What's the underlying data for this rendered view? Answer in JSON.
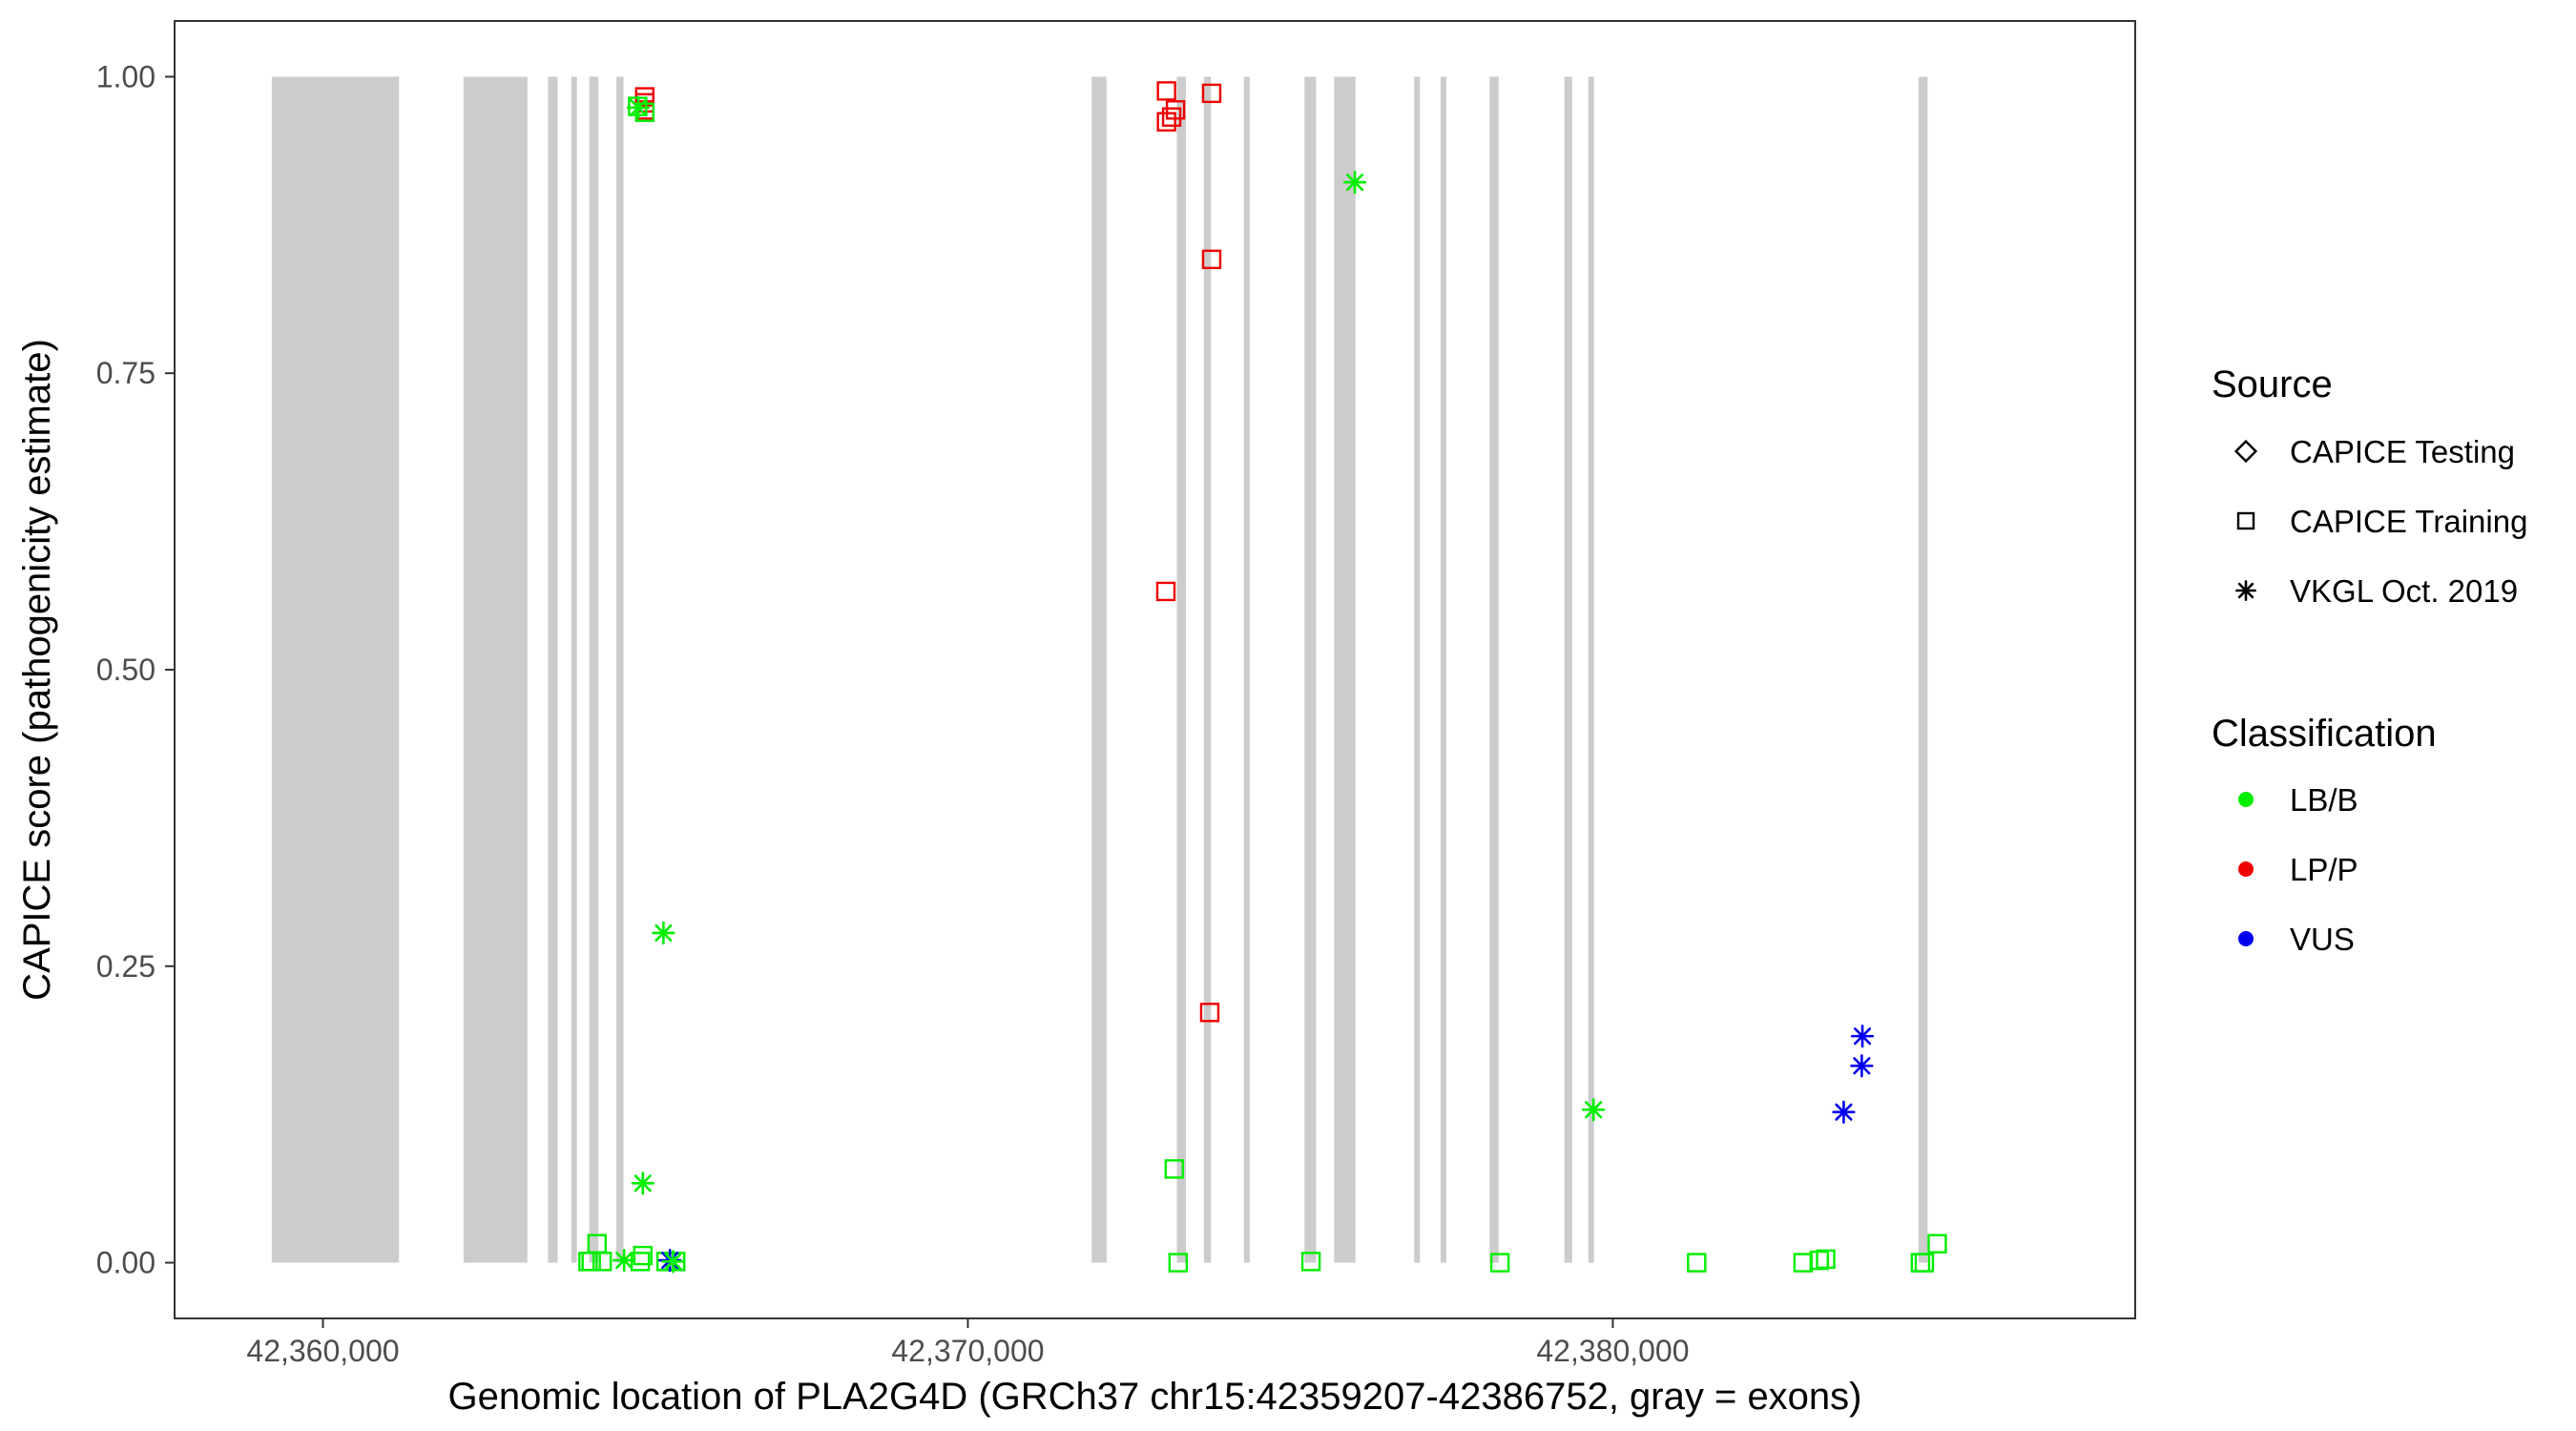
{
  "chart_data": {
    "type": "scatter",
    "title": "",
    "xlabel": "Genomic location of PLA2G4D (GRCh37 chr15:42359207-42386752, gray = exons)",
    "ylabel": "CAPICE score (pathogenicity estimate)",
    "xlim": [
      42357700,
      42388100
    ],
    "ylim": [
      -0.047,
      1.047
    ],
    "grid": false,
    "x_ticks": [
      {
        "value": 42360000,
        "label": "42,360,000"
      },
      {
        "value": 42370000,
        "label": "42,370,000"
      },
      {
        "value": 42380000,
        "label": "42,380,000"
      }
    ],
    "y_ticks": [
      {
        "value": 0,
        "label": "0.00"
      },
      {
        "value": 0.25,
        "label": "0.25"
      },
      {
        "value": 0.5,
        "label": "0.50"
      },
      {
        "value": 0.75,
        "label": "0.75"
      },
      {
        "value": 1,
        "label": "1.00"
      }
    ],
    "exon_color": "#cccccc",
    "exons": [
      [
        42359207,
        42361180
      ],
      [
        42362180,
        42363170
      ],
      [
        42363490,
        42363640
      ],
      [
        42363850,
        42363920
      ],
      [
        42364130,
        42364270
      ],
      [
        42364550,
        42364660
      ],
      [
        42371920,
        42372150
      ],
      [
        42373240,
        42373380
      ],
      [
        42373660,
        42373770
      ],
      [
        42374280,
        42374370
      ],
      [
        42375220,
        42375400
      ],
      [
        42375680,
        42376010
      ],
      [
        42376920,
        42376990
      ],
      [
        42377330,
        42377400
      ],
      [
        42378090,
        42378230
      ],
      [
        42379250,
        42379370
      ],
      [
        42379620,
        42379700
      ],
      [
        42384740,
        42384880
      ]
    ],
    "legend": {
      "placement": "right",
      "source": {
        "title": "Source",
        "items": [
          {
            "label": "CAPICE Testing",
            "shape": "diamond"
          },
          {
            "label": "CAPICE Training",
            "shape": "square"
          },
          {
            "label": "VKGL Oct. 2019",
            "shape": "asterisk"
          }
        ]
      },
      "classification": {
        "title": "Classification",
        "items": [
          {
            "label": "LB/B",
            "color": "#00ee00"
          },
          {
            "label": "LP/P",
            "color": "#ee0000"
          },
          {
            "label": "VUS",
            "color": "#0000ee"
          }
        ]
      }
    },
    "series": [
      {
        "source": "CAPICE Training",
        "classification": "LP/P",
        "shape": "square",
        "color": "#ee0000",
        "points": [
          [
            42364990,
            0.983
          ],
          [
            42364990,
            0.978
          ],
          [
            42364990,
            0.972
          ],
          [
            42373080,
            0.988
          ],
          [
            42373080,
            0.962
          ],
          [
            42373160,
            0.966
          ],
          [
            42373220,
            0.972
          ],
          [
            42373780,
            0.986
          ],
          [
            42373780,
            0.846
          ],
          [
            42373070,
            0.566
          ],
          [
            42373750,
            0.211
          ]
        ]
      },
      {
        "source": "CAPICE Training",
        "classification": "LB/B",
        "shape": "square",
        "color": "#00ee00",
        "points": [
          [
            42364880,
            0.975
          ],
          [
            42364990,
            0.97
          ],
          [
            42364110,
            0.001
          ],
          [
            42364160,
            0.001
          ],
          [
            42364250,
            0.016
          ],
          [
            42364330,
            0.001
          ],
          [
            42364920,
            0.001
          ],
          [
            42364960,
            0.006
          ],
          [
            42365320,
            0.001
          ],
          [
            42365470,
            0.001
          ],
          [
            42373200,
            0.079
          ],
          [
            42373260,
            0.0
          ],
          [
            42375320,
            0.001
          ],
          [
            42378250,
            0.0
          ],
          [
            42381300,
            0.0
          ],
          [
            42382950,
            0.0
          ],
          [
            42383200,
            0.002
          ],
          [
            42383300,
            0.003
          ],
          [
            42384770,
            0.0
          ],
          [
            42384830,
            0.0
          ],
          [
            42385030,
            0.016
          ]
        ]
      },
      {
        "source": "VKGL Oct. 2019",
        "classification": "LB/B",
        "shape": "asterisk",
        "color": "#00ee00",
        "points": [
          [
            42364890,
            0.974
          ],
          [
            42376000,
            0.911
          ],
          [
            42365280,
            0.278
          ],
          [
            42364960,
            0.067
          ],
          [
            42379700,
            0.129
          ],
          [
            42364670,
            0.002
          ]
        ]
      },
      {
        "source": "VKGL Oct. 2019",
        "classification": "VUS",
        "shape": "asterisk",
        "color": "#0000ee",
        "points": [
          [
            42383870,
            0.191
          ],
          [
            42383860,
            0.166
          ],
          [
            42383580,
            0.127
          ],
          [
            42365380,
            0.002
          ]
        ]
      },
      {
        "source": "VKGL Oct. 2019",
        "classification": "LB/B",
        "shape": "asterisk",
        "color": "#00ee00",
        "points": [
          [
            42365430,
            0.001
          ]
        ]
      }
    ]
  }
}
